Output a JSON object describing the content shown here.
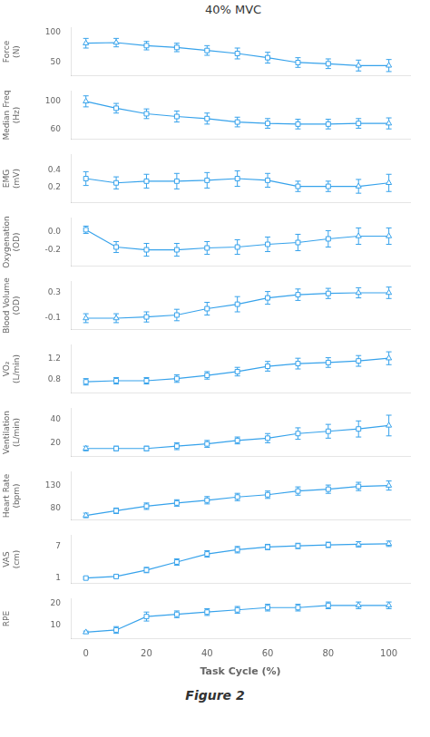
{
  "chart_data": [
    {
      "type": "line",
      "title": "40% MVC",
      "ylabel": "Force\n(N)",
      "grid": false,
      "tick_labels": "y",
      "x": [
        0,
        10,
        20,
        30,
        40,
        50,
        60,
        70,
        80,
        90,
        100
      ],
      "xlim": [
        -5,
        107
      ],
      "ylim": [
        28,
        108
      ],
      "yticks": [
        50,
        100
      ],
      "series": [
        {
          "values": [
            82,
            83,
            78,
            75,
            70,
            65,
            58,
            50,
            48,
            45,
            45
          ],
          "yerr": [
            8,
            7,
            7,
            7,
            8,
            9,
            9,
            8,
            8,
            9,
            10
          ],
          "marker": [
            "triangle",
            "triangle",
            "square",
            "square",
            "square",
            "square",
            "square",
            "square",
            "square",
            "triangle",
            "triangle"
          ]
        }
      ]
    },
    {
      "type": "line",
      "ylabel": "Median Freq\n(Hz)",
      "grid": false,
      "tick_labels": "y",
      "x": [
        0,
        10,
        20,
        30,
        40,
        50,
        60,
        70,
        80,
        90,
        100
      ],
      "xlim": [
        -5,
        107
      ],
      "ylim": [
        45,
        115
      ],
      "yticks": [
        60,
        100
      ],
      "series": [
        {
          "values": [
            100,
            90,
            82,
            78,
            75,
            70,
            68,
            67,
            67,
            68,
            68
          ],
          "yerr": [
            8,
            7,
            7,
            8,
            8,
            7,
            7,
            7,
            7,
            7,
            8
          ],
          "marker": [
            "triangle",
            "square",
            "square",
            "square",
            "square",
            "square",
            "square",
            "square",
            "square",
            "square",
            "triangle"
          ]
        }
      ]
    },
    {
      "type": "line",
      "ylabel": "EMG\n(mV)",
      "grid": false,
      "tick_labels": "y",
      "x": [
        0,
        10,
        20,
        30,
        40,
        50,
        60,
        70,
        80,
        90,
        100
      ],
      "xlim": [
        -5,
        107
      ],
      "ylim": [
        0.02,
        0.58
      ],
      "yticks": [
        0.2,
        0.4
      ],
      "series": [
        {
          "values": [
            0.3,
            0.25,
            0.27,
            0.27,
            0.28,
            0.3,
            0.28,
            0.21,
            0.21,
            0.21,
            0.25
          ],
          "yerr": [
            0.08,
            0.07,
            0.08,
            0.09,
            0.09,
            0.09,
            0.08,
            0.06,
            0.06,
            0.08,
            0.1
          ],
          "marker": [
            "square",
            "square",
            "square",
            "square",
            "square",
            "square",
            "square",
            "square",
            "square",
            "triangle",
            "triangle"
          ]
        }
      ]
    },
    {
      "type": "line",
      "ylabel": "Oxygenation\n(OD)",
      "grid": false,
      "tick_labels": "y",
      "x": [
        0,
        10,
        20,
        30,
        40,
        50,
        60,
        70,
        80,
        90,
        100
      ],
      "xlim": [
        -5,
        107
      ],
      "ylim": [
        -0.38,
        0.15
      ],
      "yticks": [
        -0.2,
        {
          "value": 0.0,
          "label": "0.0"
        }
      ],
      "series": [
        {
          "values": [
            0.02,
            -0.17,
            -0.2,
            -0.2,
            -0.18,
            -0.17,
            -0.14,
            -0.12,
            -0.08,
            -0.05,
            -0.05
          ],
          "yerr": [
            0.04,
            0.06,
            0.07,
            0.07,
            0.07,
            0.08,
            0.08,
            0.09,
            0.09,
            0.09,
            0.09
          ],
          "marker": [
            "square",
            "square",
            "square",
            "square",
            "square",
            "square",
            "square",
            "square",
            "square",
            "triangle",
            "triangle"
          ]
        }
      ]
    },
    {
      "type": "line",
      "ylabel": "Blood Volume\n(OD)",
      "grid": false,
      "tick_labels": "y",
      "x": [
        0,
        10,
        20,
        30,
        40,
        50,
        60,
        70,
        80,
        90,
        100
      ],
      "xlim": [
        -5,
        107
      ],
      "ylim": [
        -0.28,
        0.48
      ],
      "yticks": [
        -0.1,
        0.3
      ],
      "series": [
        {
          "values": [
            -0.1,
            -0.1,
            -0.08,
            -0.05,
            0.05,
            0.12,
            0.22,
            0.27,
            0.29,
            0.3,
            0.3
          ],
          "yerr": [
            0.07,
            0.07,
            0.08,
            0.09,
            0.1,
            0.12,
            0.1,
            0.09,
            0.08,
            0.08,
            0.09
          ],
          "marker": [
            "triangle",
            "triangle",
            "square",
            "square",
            "square",
            "square",
            "square",
            "square",
            "square",
            "triangle",
            "triangle"
          ]
        }
      ]
    },
    {
      "type": "line",
      "ylabel": "VO₂\n(L/min)",
      "grid": false,
      "tick_labels": "y",
      "x": [
        0,
        10,
        20,
        30,
        40,
        50,
        60,
        70,
        80,
        90,
        100
      ],
      "xlim": [
        -5,
        107
      ],
      "ylim": [
        0.55,
        1.45
      ],
      "yticks": [
        0.8,
        1.2
      ],
      "series": [
        {
          "values": [
            0.76,
            0.78,
            0.78,
            0.82,
            0.88,
            0.95,
            1.05,
            1.1,
            1.12,
            1.15,
            1.2
          ],
          "yerr": [
            0.06,
            0.06,
            0.06,
            0.07,
            0.07,
            0.08,
            0.09,
            0.1,
            0.09,
            0.1,
            0.12
          ],
          "marker": [
            "square",
            "square",
            "square",
            "square",
            "square",
            "square",
            "square",
            "square",
            "square",
            "square",
            "triangle"
          ]
        }
      ]
    },
    {
      "type": "line",
      "ylabel": "Ventilation\n(L/min)",
      "grid": false,
      "tick_labels": "y",
      "x": [
        0,
        10,
        20,
        30,
        40,
        50,
        60,
        70,
        80,
        90,
        100
      ],
      "xlim": [
        -5,
        107
      ],
      "ylim": [
        8,
        50
      ],
      "yticks": [
        20,
        40
      ],
      "series": [
        {
          "values": [
            15,
            15,
            15,
            17,
            19,
            22,
            24,
            28,
            30,
            32,
            35
          ],
          "yerr": [
            2,
            2,
            2,
            3,
            3,
            3,
            4,
            5,
            6,
            7,
            9
          ],
          "marker": [
            "triangle",
            "square",
            "square",
            "square",
            "square",
            "square",
            "square",
            "square",
            "square",
            "square",
            "triangle"
          ]
        }
      ]
    },
    {
      "type": "line",
      "ylabel": "Heart Rate\n(bpm)",
      "grid": false,
      "tick_labels": "y",
      "x": [
        0,
        10,
        20,
        30,
        40,
        50,
        60,
        70,
        80,
        90,
        100
      ],
      "xlim": [
        -5,
        107
      ],
      "ylim": [
        55,
        160
      ],
      "yticks": [
        80,
        130
      ],
      "series": [
        {
          "values": [
            65,
            75,
            85,
            92,
            98,
            105,
            110,
            118,
            122,
            128,
            130
          ],
          "yerr": [
            5,
            6,
            7,
            7,
            8,
            8,
            8,
            9,
            9,
            9,
            10
          ],
          "marker": [
            "triangle",
            "square",
            "square",
            "square",
            "square",
            "square",
            "square",
            "square",
            "square",
            "square",
            "triangle"
          ]
        }
      ]
    },
    {
      "type": "line",
      "ylabel": "VAS\n(cm)",
      "grid": false,
      "tick_labels": "y",
      "x": [
        0,
        10,
        20,
        30,
        40,
        50,
        60,
        70,
        80,
        90,
        100
      ],
      "xlim": [
        -5,
        107
      ],
      "ylim": [
        0,
        9
      ],
      "yticks": [
        1,
        7
      ],
      "series": [
        {
          "values": [
            1.0,
            1.3,
            2.5,
            4.0,
            5.5,
            6.3,
            6.8,
            7.0,
            7.2,
            7.3,
            7.4
          ],
          "yerr": [
            0.2,
            0.3,
            0.5,
            0.6,
            0.6,
            0.6,
            0.5,
            0.5,
            0.5,
            0.5,
            0.5
          ],
          "marker": [
            "square",
            "square",
            "square",
            "square",
            "square",
            "square",
            "square",
            "square",
            "square",
            "triangle",
            "triangle"
          ]
        }
      ]
    },
    {
      "type": "line",
      "ylabel": "RPE",
      "xlabel": "Task Cycle (%)",
      "grid": false,
      "annotations": [
        "Figure 2"
      ],
      "x": [
        0,
        10,
        20,
        30,
        40,
        50,
        60,
        70,
        80,
        90,
        100
      ],
      "xlim": [
        -5,
        107
      ],
      "xticks": [
        0,
        20,
        40,
        60,
        80,
        100
      ],
      "ylim": [
        4,
        22
      ],
      "yticks": [
        10,
        20
      ],
      "series": [
        {
          "values": [
            7,
            8,
            14,
            15,
            16,
            17,
            18,
            18,
            19,
            19,
            19
          ],
          "yerr": [
            0.5,
            1.5,
            2.0,
            1.5,
            1.5,
            1.5,
            1.5,
            1.5,
            1.5,
            1.5,
            1.5
          ],
          "marker": [
            "triangle",
            "square",
            "square",
            "square",
            "square",
            "square",
            "square",
            "square",
            "square",
            "triangle",
            "triangle"
          ]
        }
      ]
    }
  ]
}
